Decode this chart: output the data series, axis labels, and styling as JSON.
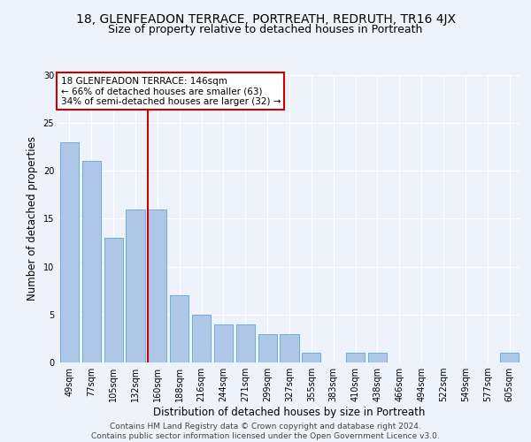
{
  "title": "18, GLENFEADON TERRACE, PORTREATH, REDRUTH, TR16 4JX",
  "subtitle": "Size of property relative to detached houses in Portreath",
  "xlabel": "Distribution of detached houses by size in Portreath",
  "ylabel": "Number of detached properties",
  "categories": [
    "49sqm",
    "77sqm",
    "105sqm",
    "132sqm",
    "160sqm",
    "188sqm",
    "216sqm",
    "244sqm",
    "271sqm",
    "299sqm",
    "327sqm",
    "355sqm",
    "383sqm",
    "410sqm",
    "438sqm",
    "466sqm",
    "494sqm",
    "522sqm",
    "549sqm",
    "577sqm",
    "605sqm"
  ],
  "values": [
    23,
    21,
    13,
    16,
    16,
    7,
    5,
    4,
    4,
    3,
    3,
    1,
    0,
    1,
    1,
    0,
    0,
    0,
    0,
    0,
    1
  ],
  "bar_color": "#aec6e8",
  "bar_edgecolor": "#6baed6",
  "vline_pos": 3.575,
  "vline_color": "#cc0000",
  "annotation_text": "18 GLENFEADON TERRACE: 146sqm\n← 66% of detached houses are smaller (63)\n34% of semi-detached houses are larger (32) →",
  "annotation_box_facecolor": "#ffffff",
  "annotation_box_edgecolor": "#cc0000",
  "ylim": [
    0,
    30
  ],
  "yticks": [
    0,
    5,
    10,
    15,
    20,
    25,
    30
  ],
  "footer": "Contains HM Land Registry data © Crown copyright and database right 2024.\nContains public sector information licensed under the Open Government Licence v3.0.",
  "title_fontsize": 10,
  "subtitle_fontsize": 9,
  "xlabel_fontsize": 8.5,
  "ylabel_fontsize": 8.5,
  "tick_fontsize": 7,
  "annotation_fontsize": 7.5,
  "footer_fontsize": 6.5,
  "bg_color": "#eef2fa"
}
